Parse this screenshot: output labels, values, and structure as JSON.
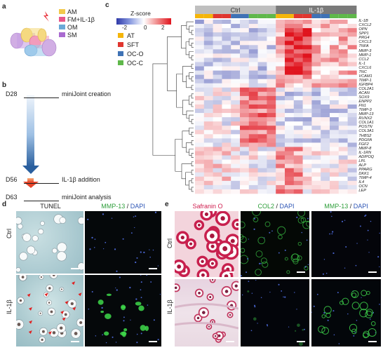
{
  "panels": {
    "a": "a",
    "b": "b",
    "c": "c",
    "d": "d",
    "e": "e"
  },
  "panel_a": {
    "legend": [
      {
        "label": "AM",
        "color": "#f2c94c"
      },
      {
        "label": "FM+IL-1β",
        "color": "#e8578a"
      },
      {
        "label": "OM",
        "color": "#6aa9d8"
      },
      {
        "label": "SM",
        "color": "#a96ad0"
      }
    ]
  },
  "panel_b": {
    "steps": [
      {
        "day": "D28",
        "text": "miniJoint creation"
      },
      {
        "day": "D56",
        "text": "IL-1β addition"
      },
      {
        "day": "D63",
        "text": "miniJoint analysis"
      }
    ]
  },
  "panel_c": {
    "zscore_title": "Z-score",
    "zscore_ticks": [
      "-2",
      "0",
      "2"
    ],
    "group_legend": [
      {
        "label": "AT",
        "color": "#f5b50a"
      },
      {
        "label": "SFT",
        "color": "#e0362f"
      },
      {
        "label": "OC-O",
        "color": "#3f72b5"
      },
      {
        "label": "OC-C",
        "color": "#5fb84a"
      }
    ],
    "conditions": [
      {
        "label": "Ctrl",
        "color": "#bfbfbf"
      },
      {
        "label": "IL-1β",
        "color": "#7a7a7a"
      }
    ],
    "genes": [
      "IL-1B",
      "CXCL2",
      "OPN",
      "SPP1",
      "PRG4",
      "CXCL3",
      "TNFA",
      "MMP-3",
      "MMP-1",
      "CCL2",
      "IL-1",
      "CXCL6",
      "TNC",
      "VCAM1",
      "TIMP-1",
      "IGFBP4",
      "COL2A1",
      "ACAN",
      "SOX9",
      "ENPP2",
      "FN1",
      "TIMP-3",
      "MMP-13",
      "RUNX2",
      "COL1A1",
      "POSTN",
      "COL3A1",
      "THBS2",
      "PDGFA",
      "FGF2",
      "MMP-8",
      "IL-1RN",
      "ADIPOQ",
      "LPL",
      "ALP",
      "PPARG",
      "DKK1",
      "TIMP-4",
      "IL4",
      "OCN",
      "LEP"
    ]
  },
  "panel_d": {
    "headers": [
      {
        "text": "TUNEL",
        "color": "#222222"
      },
      {
        "parts": [
          {
            "text": "MMP-13",
            "color": "#2e9e3a"
          },
          {
            "text": " / ",
            "color": "#222222"
          },
          {
            "text": "DAPI",
            "color": "#2d55b5"
          }
        ]
      }
    ],
    "rows": [
      "Ctrl",
      "IL-1β"
    ]
  },
  "panel_e": {
    "headers": [
      {
        "parts": [
          {
            "text": "Safranin O",
            "color": "#d02050"
          }
        ]
      },
      {
        "parts": [
          {
            "text": "COL2",
            "color": "#2e9e3a"
          },
          {
            "text": " / ",
            "color": "#222222"
          },
          {
            "text": "DAPI",
            "color": "#2d55b5"
          }
        ]
      },
      {
        "parts": [
          {
            "text": "MMP-13",
            "color": "#2e9e3a"
          },
          {
            "text": " / ",
            "color": "#222222"
          },
          {
            "text": "DAPI",
            "color": "#2d55b5"
          }
        ]
      }
    ],
    "rows": [
      "Ctrl",
      "IL-1β"
    ]
  }
}
